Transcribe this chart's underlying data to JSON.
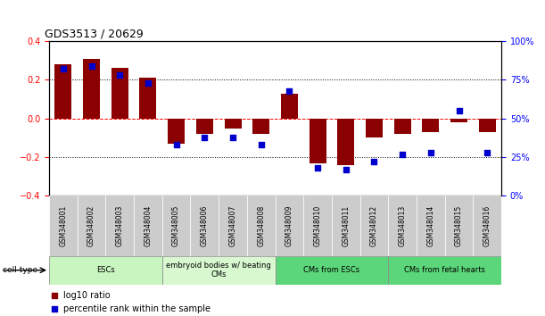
{
  "title": "GDS3513 / 20629",
  "samples": [
    "GSM348001",
    "GSM348002",
    "GSM348003",
    "GSM348004",
    "GSM348005",
    "GSM348006",
    "GSM348007",
    "GSM348008",
    "GSM348009",
    "GSM348010",
    "GSM348011",
    "GSM348012",
    "GSM348013",
    "GSM348014",
    "GSM348015",
    "GSM348016"
  ],
  "log10_ratio": [
    0.28,
    0.31,
    0.26,
    0.21,
    -0.13,
    -0.08,
    -0.05,
    -0.08,
    0.13,
    -0.23,
    -0.24,
    -0.1,
    -0.08,
    -0.07,
    -0.02,
    -0.07
  ],
  "percentile_rank": [
    82,
    84,
    78,
    73,
    33,
    38,
    38,
    33,
    68,
    18,
    17,
    22,
    27,
    28,
    55,
    28
  ],
  "bar_color": "#8B0000",
  "dot_color": "#0000CD",
  "ylim_left": [
    -0.4,
    0.4
  ],
  "ylim_right": [
    0,
    100
  ],
  "yticks_left": [
    -0.4,
    -0.2,
    0.0,
    0.2,
    0.4
  ],
  "yticks_right": [
    0,
    25,
    50,
    75,
    100
  ],
  "cell_type_groups": [
    {
      "label": "ESCs",
      "start": 0,
      "end": 3,
      "color": "#c8f5c0"
    },
    {
      "label": "embryoid bodies w/ beating\nCMs",
      "start": 4,
      "end": 7,
      "color": "#d8f8d0"
    },
    {
      "label": "CMs from ESCs",
      "start": 8,
      "end": 11,
      "color": "#5cd67a"
    },
    {
      "label": "CMs from fetal hearts",
      "start": 12,
      "end": 15,
      "color": "#5cd67a"
    }
  ],
  "legend_ratio_label": "log10 ratio",
  "legend_pct_label": "percentile rank within the sample",
  "cell_type_label": "cell type"
}
